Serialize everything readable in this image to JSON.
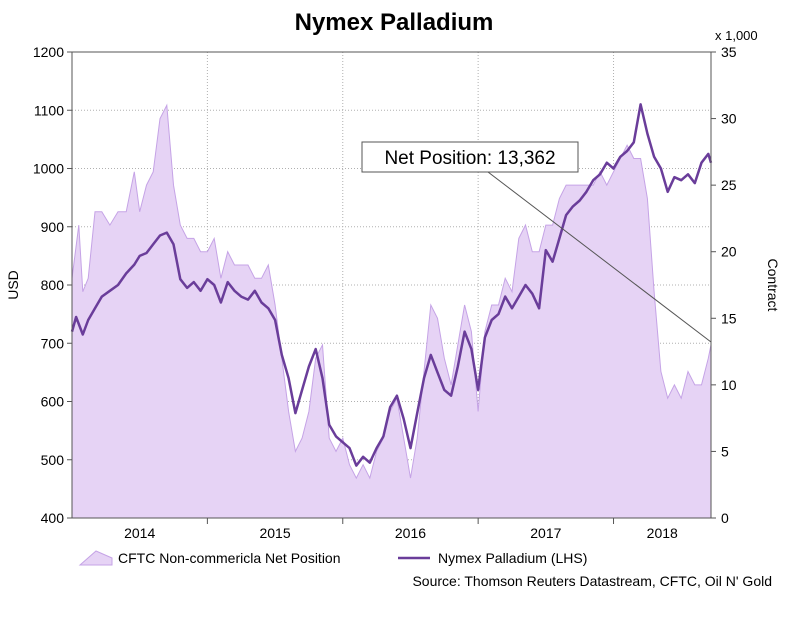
{
  "chart_data": {
    "type": "line",
    "title": "Nymex Palladium",
    "ylabel_left": "USD",
    "ylabel_right": "Contract",
    "right_multiplier": "x 1,000",
    "left_ylim": [
      400,
      1200
    ],
    "left_ticks": [
      "400",
      "500",
      "600",
      "700",
      "800",
      "900",
      "1000",
      "1100",
      "1200"
    ],
    "right_ylim": [
      0,
      35
    ],
    "right_ticks": [
      "0",
      "5",
      "10",
      "15",
      "20",
      "25",
      "30",
      "35"
    ],
    "x_ticks": [
      "2014",
      "2015",
      "2016",
      "2017",
      "2018"
    ],
    "grid": true,
    "legend_position": "bottom",
    "annotation": "Net Position: 13,362",
    "source": "Source: Thomson Reuters Datastream, CFTC, Oil N' Gold",
    "colors": {
      "line": "#6a3d9a",
      "area_fill": "#e6d3f5",
      "area_edge": "#c5a3e6"
    },
    "series": [
      {
        "name": "Nymex Palladium (LHS)",
        "axis": "left",
        "kind": "line",
        "x": [
          2013.5,
          2013.53,
          2013.58,
          2013.62,
          2013.67,
          2013.72,
          2013.78,
          2013.84,
          2013.9,
          2013.96,
          2014.0,
          2014.05,
          2014.1,
          2014.15,
          2014.2,
          2014.25,
          2014.3,
          2014.35,
          2014.4,
          2014.45,
          2014.5,
          2014.55,
          2014.6,
          2014.65,
          2014.7,
          2014.75,
          2014.8,
          2014.85,
          2014.9,
          2014.95,
          2015.0,
          2015.05,
          2015.1,
          2015.15,
          2015.2,
          2015.25,
          2015.3,
          2015.35,
          2015.4,
          2015.45,
          2015.5,
          2015.55,
          2015.6,
          2015.65,
          2015.7,
          2015.75,
          2015.8,
          2015.85,
          2015.9,
          2015.95,
          2016.0,
          2016.05,
          2016.1,
          2016.15,
          2016.2,
          2016.25,
          2016.3,
          2016.35,
          2016.4,
          2016.45,
          2016.5,
          2016.55,
          2016.6,
          2016.65,
          2016.7,
          2016.75,
          2016.8,
          2016.85,
          2016.9,
          2016.95,
          2017.0,
          2017.05,
          2017.1,
          2017.15,
          2017.2,
          2017.25,
          2017.3,
          2017.35,
          2017.4,
          2017.45,
          2017.5,
          2017.55,
          2017.6,
          2017.65,
          2017.7,
          2017.75,
          2017.8,
          2017.85,
          2017.9,
          2017.95,
          2018.0,
          2018.05,
          2018.1,
          2018.15,
          2018.2,
          2018.22
        ],
        "y": [
          720,
          745,
          715,
          740,
          760,
          780,
          790,
          800,
          820,
          835,
          850,
          855,
          870,
          885,
          890,
          870,
          810,
          795,
          805,
          790,
          810,
          800,
          770,
          805,
          790,
          780,
          775,
          790,
          770,
          760,
          740,
          680,
          640,
          580,
          620,
          660,
          690,
          640,
          560,
          540,
          530,
          520,
          490,
          505,
          495,
          520,
          540,
          590,
          610,
          570,
          520,
          580,
          640,
          680,
          650,
          620,
          610,
          660,
          720,
          690,
          620,
          710,
          740,
          750,
          780,
          760,
          780,
          800,
          785,
          760,
          860,
          840,
          880,
          920,
          935,
          945,
          960,
          980,
          990,
          1010,
          1000,
          1020,
          1030,
          1045,
          1110,
          1060,
          1020,
          1000,
          960,
          985,
          980,
          990,
          975,
          1010,
          1025,
          1010
        ]
      },
      {
        "name": "CFTC Non-commericla Net Position",
        "axis": "right",
        "kind": "area",
        "x": [
          2013.5,
          2013.55,
          2013.58,
          2013.62,
          2013.67,
          2013.72,
          2013.78,
          2013.84,
          2013.9,
          2013.96,
          2014.0,
          2014.05,
          2014.1,
          2014.15,
          2014.2,
          2014.25,
          2014.3,
          2014.35,
          2014.4,
          2014.45,
          2014.5,
          2014.55,
          2014.6,
          2014.65,
          2014.7,
          2014.75,
          2014.8,
          2014.85,
          2014.9,
          2014.95,
          2015.0,
          2015.05,
          2015.1,
          2015.15,
          2015.2,
          2015.25,
          2015.3,
          2015.35,
          2015.4,
          2015.45,
          2015.5,
          2015.55,
          2015.6,
          2015.65,
          2015.7,
          2015.75,
          2015.8,
          2015.85,
          2015.9,
          2015.95,
          2016.0,
          2016.05,
          2016.1,
          2016.15,
          2016.2,
          2016.25,
          2016.3,
          2016.35,
          2016.4,
          2016.45,
          2016.5,
          2016.55,
          2016.6,
          2016.65,
          2016.7,
          2016.75,
          2016.8,
          2016.85,
          2016.9,
          2016.95,
          2017.0,
          2017.05,
          2017.1,
          2017.15,
          2017.2,
          2017.25,
          2017.3,
          2017.35,
          2017.4,
          2017.45,
          2017.5,
          2017.55,
          2017.6,
          2017.65,
          2017.7,
          2017.75,
          2017.8,
          2017.85,
          2017.9,
          2017.95,
          2018.0,
          2018.05,
          2018.1,
          2018.15,
          2018.2,
          2018.22
        ],
        "y": [
          18,
          22,
          17,
          18,
          23,
          23,
          22,
          23,
          23,
          26,
          23,
          25,
          26,
          30,
          31,
          25,
          22,
          21,
          21,
          20,
          20,
          21,
          18,
          20,
          19,
          19,
          19,
          18,
          18,
          19,
          16,
          12,
          8,
          5,
          6,
          8,
          12,
          13,
          6,
          5,
          6,
          4,
          3,
          4,
          3,
          5,
          6,
          8,
          9,
          6,
          3,
          6,
          11,
          16,
          15,
          12,
          10,
          13,
          16,
          14,
          8,
          14,
          16,
          16,
          18,
          17,
          21,
          22,
          20,
          20,
          22,
          22,
          24,
          25,
          25,
          25,
          25,
          25,
          26,
          25,
          26,
          27,
          28,
          27,
          27,
          24,
          17,
          11,
          9,
          10,
          9,
          11,
          10,
          10,
          12,
          13
        ]
      }
    ]
  }
}
